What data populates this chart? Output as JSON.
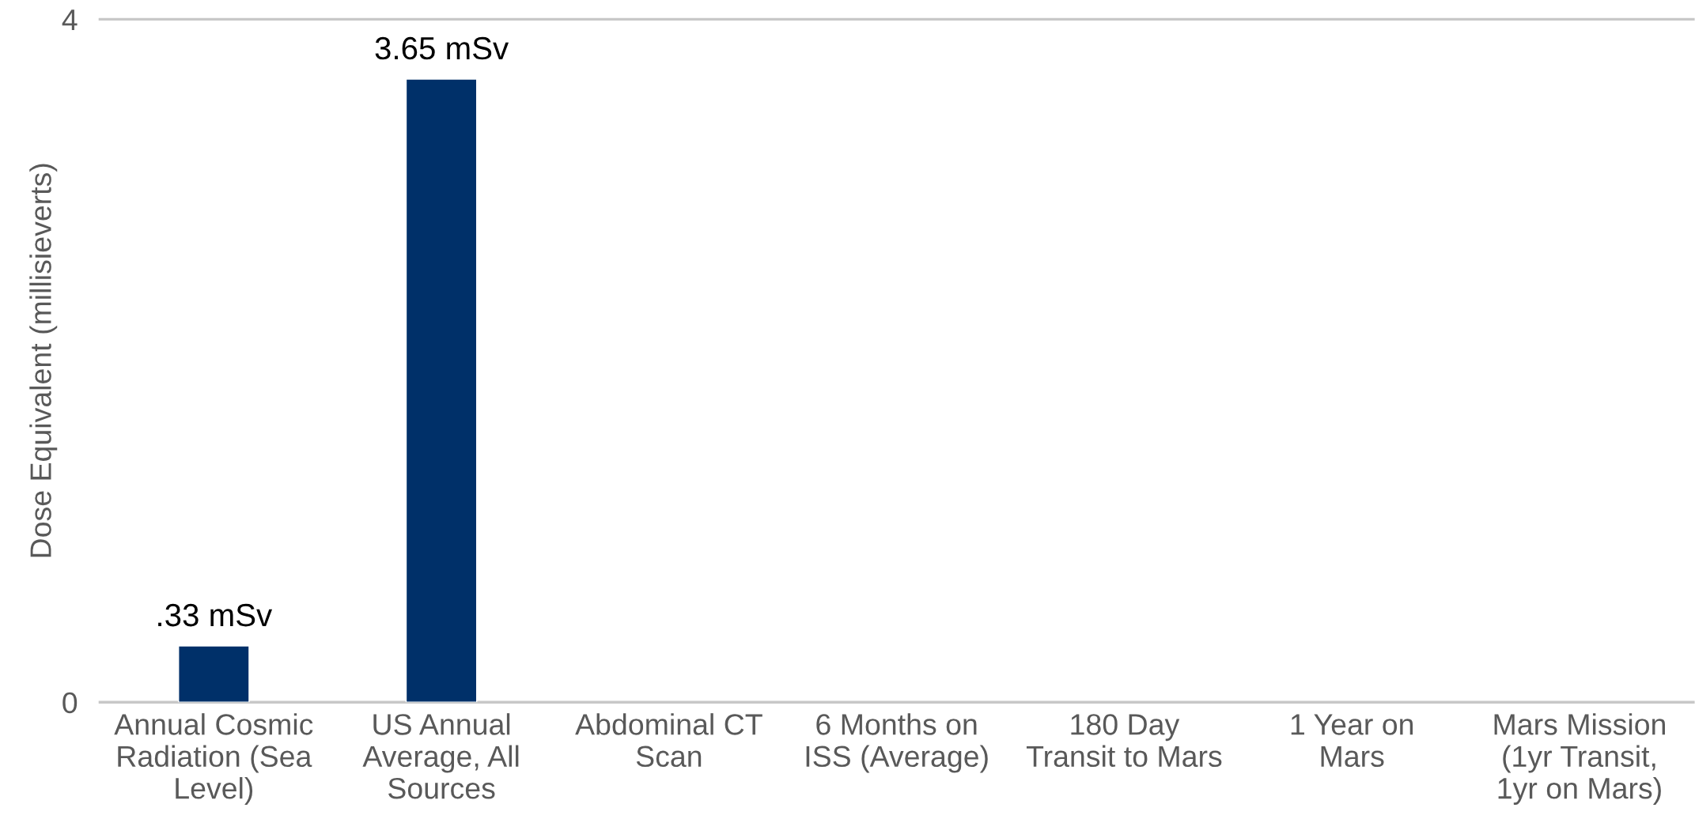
{
  "chart_data": {
    "type": "bar",
    "ylabel": "Dose Equivalent (millisieverts)",
    "categories": [
      "Annual Cosmic\nRadiation (Sea\nLevel)",
      "US Annual\nAverage, All\nSources",
      "Abdominal CT\nScan",
      "6 Months on\nISS (Average)",
      "180 Day\nTransit to Mars",
      "1 Year on\nMars",
      "Mars Mission\n(1yr Transit,\n1yr on Mars)"
    ],
    "values": [
      0.33,
      3.65,
      null,
      null,
      null,
      null,
      null
    ],
    "value_labels": [
      ".33 mSv",
      "3.65 mSv",
      null,
      null,
      null,
      null,
      null
    ],
    "color": "#003069",
    "ylim": [
      0,
      4
    ],
    "yticks": [
      0,
      4
    ],
    "legend": false
  }
}
